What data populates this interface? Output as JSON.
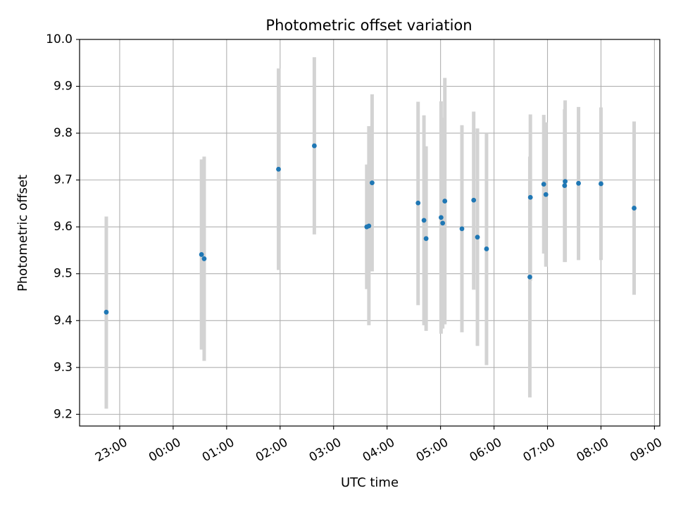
{
  "chart_data": {
    "type": "scatter",
    "title": "Photometric offset variation",
    "xlabel": "UTC time",
    "ylabel": "Photometric offset",
    "x_unit": "hours (UTC clock time; values past 24 wrap to next day)",
    "xlim": [
      22.25,
      33.1
    ],
    "ylim": [
      9.175,
      10.0
    ],
    "x_ticks": [
      {
        "value": 23,
        "label": "23:00"
      },
      {
        "value": 24,
        "label": "00:00"
      },
      {
        "value": 25,
        "label": "01:00"
      },
      {
        "value": 26,
        "label": "02:00"
      },
      {
        "value": 27,
        "label": "03:00"
      },
      {
        "value": 28,
        "label": "04:00"
      },
      {
        "value": 29,
        "label": "05:00"
      },
      {
        "value": 30,
        "label": "06:00"
      },
      {
        "value": 31,
        "label": "07:00"
      },
      {
        "value": 32,
        "label": "08:00"
      },
      {
        "value": 33,
        "label": "09:00"
      }
    ],
    "y_ticks": [
      {
        "value": 9.2,
        "label": "9.2"
      },
      {
        "value": 9.3,
        "label": "9.3"
      },
      {
        "value": 9.4,
        "label": "9.4"
      },
      {
        "value": 9.5,
        "label": "9.5"
      },
      {
        "value": 9.6,
        "label": "9.6"
      },
      {
        "value": 9.7,
        "label": "9.7"
      },
      {
        "value": 9.8,
        "label": "9.8"
      },
      {
        "value": 9.9,
        "label": "9.9"
      },
      {
        "value": 10.0,
        "label": "10.0"
      }
    ],
    "grid": true,
    "marker_color": "#1f77b4",
    "errorbar_color": "#d3d3d3",
    "points": [
      {
        "x": 22.75,
        "y": 9.418,
        "y_low": 9.212,
        "y_high": 9.622
      },
      {
        "x": 24.53,
        "y": 9.541,
        "y_low": 9.338,
        "y_high": 9.744
      },
      {
        "x": 24.58,
        "y": 9.532,
        "y_low": 9.314,
        "y_high": 9.75
      },
      {
        "x": 25.97,
        "y": 9.723,
        "y_low": 9.508,
        "y_high": 9.938
      },
      {
        "x": 26.64,
        "y": 9.773,
        "y_low": 9.584,
        "y_high": 9.962
      },
      {
        "x": 27.62,
        "y": 9.6,
        "y_low": 9.467,
        "y_high": 9.733
      },
      {
        "x": 27.66,
        "y": 9.602,
        "y_low": 9.39,
        "y_high": 9.815
      },
      {
        "x": 27.72,
        "y": 9.694,
        "y_low": 9.505,
        "y_high": 9.883
      },
      {
        "x": 28.58,
        "y": 9.651,
        "y_low": 9.433,
        "y_high": 9.867
      },
      {
        "x": 28.69,
        "y": 9.614,
        "y_low": 9.39,
        "y_high": 9.838
      },
      {
        "x": 28.73,
        "y": 9.575,
        "y_low": 9.378,
        "y_high": 9.772
      },
      {
        "x": 29.01,
        "y": 9.62,
        "y_low": 9.372,
        "y_high": 9.868
      },
      {
        "x": 29.04,
        "y": 9.608,
        "y_low": 9.383,
        "y_high": 9.833
      },
      {
        "x": 29.08,
        "y": 9.655,
        "y_low": 9.392,
        "y_high": 9.918
      },
      {
        "x": 29.4,
        "y": 9.596,
        "y_low": 9.375,
        "y_high": 9.817
      },
      {
        "x": 29.62,
        "y": 9.657,
        "y_low": 9.466,
        "y_high": 9.846
      },
      {
        "x": 29.69,
        "y": 9.578,
        "y_low": 9.346,
        "y_high": 9.81
      },
      {
        "x": 29.86,
        "y": 9.553,
        "y_low": 9.305,
        "y_high": 9.8
      },
      {
        "x": 30.67,
        "y": 9.493,
        "y_low": 9.236,
        "y_high": 9.75
      },
      {
        "x": 30.68,
        "y": 9.663,
        "y_low": 9.485,
        "y_high": 9.84
      },
      {
        "x": 30.93,
        "y": 9.691,
        "y_low": 9.543,
        "y_high": 9.839
      },
      {
        "x": 30.97,
        "y": 9.669,
        "y_low": 9.515,
        "y_high": 9.823
      },
      {
        "x": 31.32,
        "y": 9.688,
        "y_low": 9.525,
        "y_high": 9.851
      },
      {
        "x": 31.33,
        "y": 9.697,
        "y_low": 9.525,
        "y_high": 9.87
      },
      {
        "x": 31.58,
        "y": 9.693,
        "y_low": 9.529,
        "y_high": 9.856
      },
      {
        "x": 32.0,
        "y": 9.692,
        "y_low": 9.529,
        "y_high": 9.855
      },
      {
        "x": 32.62,
        "y": 9.64,
        "y_low": 9.455,
        "y_high": 9.825
      }
    ]
  }
}
